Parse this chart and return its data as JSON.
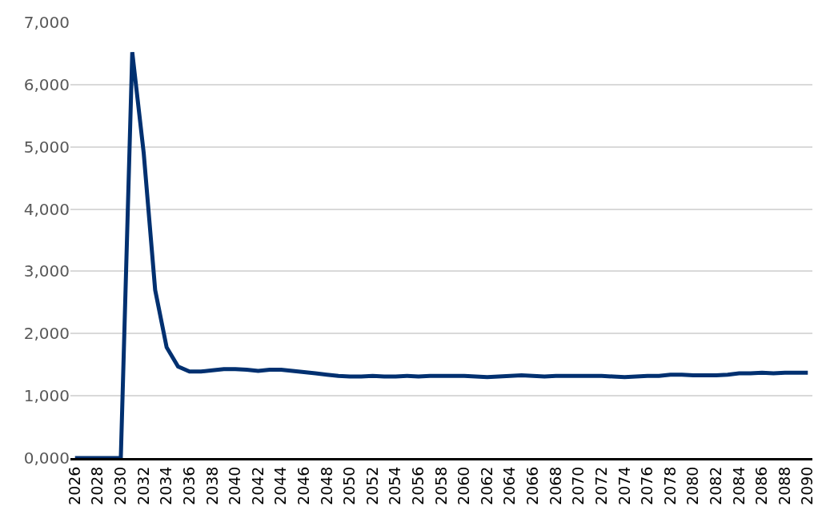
{
  "chart_data": {
    "type": "line",
    "x": [
      2026,
      2027,
      2028,
      2029,
      2030,
      2031,
      2032,
      2033,
      2034,
      2035,
      2036,
      2037,
      2038,
      2039,
      2040,
      2041,
      2042,
      2043,
      2044,
      2045,
      2046,
      2047,
      2048,
      2049,
      2050,
      2051,
      2052,
      2053,
      2054,
      2055,
      2056,
      2057,
      2058,
      2059,
      2060,
      2061,
      2062,
      2063,
      2064,
      2065,
      2066,
      2067,
      2068,
      2069,
      2070,
      2071,
      2072,
      2073,
      2074,
      2075,
      2076,
      2077,
      2078,
      2079,
      2080,
      2081,
      2082,
      2083,
      2084,
      2085,
      2086,
      2087,
      2088,
      2089,
      2090
    ],
    "series": [
      {
        "color": "#003070",
        "values": [
          0,
          0,
          0,
          0,
          0,
          6520,
          4900,
          2700,
          1780,
          1470,
          1390,
          1390,
          1410,
          1430,
          1430,
          1420,
          1400,
          1420,
          1420,
          1400,
          1380,
          1360,
          1340,
          1320,
          1310,
          1310,
          1320,
          1310,
          1310,
          1320,
          1310,
          1320,
          1320,
          1320,
          1320,
          1310,
          1300,
          1310,
          1320,
          1330,
          1320,
          1310,
          1320,
          1320,
          1320,
          1320,
          1320,
          1310,
          1300,
          1310,
          1320,
          1320,
          1340,
          1340,
          1330,
          1330,
          1330,
          1340,
          1360,
          1360,
          1370,
          1360,
          1370,
          1370,
          1370
        ]
      }
    ],
    "xlim": [
      2025.6,
      2090.4
    ],
    "xticks": [
      2026,
      2028,
      2030,
      2032,
      2034,
      2036,
      2038,
      2040,
      2042,
      2044,
      2046,
      2048,
      2050,
      2052,
      2054,
      2056,
      2058,
      2060,
      2062,
      2064,
      2066,
      2068,
      2070,
      2072,
      2074,
      2076,
      2078,
      2080,
      2082,
      2084,
      2086,
      2088,
      2090
    ],
    "ylim": [
      0,
      7000
    ],
    "yticks": [
      {
        "value": 0,
        "label": "0,000"
      },
      {
        "value": 1000,
        "label": "1,000"
      },
      {
        "value": 2000,
        "label": "2,000"
      },
      {
        "value": 3000,
        "label": "3,000"
      },
      {
        "value": 4000,
        "label": "4,000"
      },
      {
        "value": 5000,
        "label": "5,000"
      },
      {
        "value": 6000,
        "label": "6,000"
      },
      {
        "value": 7000,
        "label": "7,000"
      }
    ],
    "grid": "y",
    "marker": "none",
    "line_style": "solid"
  }
}
